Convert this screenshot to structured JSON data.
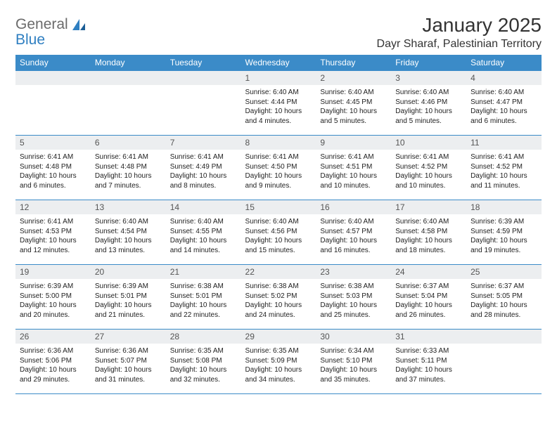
{
  "brand": {
    "name_part1": "General",
    "name_part2": "Blue",
    "logo_color": "#2f7fc1",
    "text_color": "#6b6b6b"
  },
  "header": {
    "month_title": "January 2025",
    "location": "Dayr Sharaf, Palestinian Territory"
  },
  "calendar": {
    "header_bg": "#3b8bc8",
    "header_fg": "#ffffff",
    "daynum_bg": "#eceef0",
    "border_color": "#3b8bc8",
    "columns": [
      "Sunday",
      "Monday",
      "Tuesday",
      "Wednesday",
      "Thursday",
      "Friday",
      "Saturday"
    ],
    "weeks": [
      [
        null,
        null,
        null,
        {
          "n": "1",
          "sunrise": "6:40 AM",
          "sunset": "4:44 PM",
          "daylight": "10 hours and 4 minutes."
        },
        {
          "n": "2",
          "sunrise": "6:40 AM",
          "sunset": "4:45 PM",
          "daylight": "10 hours and 5 minutes."
        },
        {
          "n": "3",
          "sunrise": "6:40 AM",
          "sunset": "4:46 PM",
          "daylight": "10 hours and 5 minutes."
        },
        {
          "n": "4",
          "sunrise": "6:40 AM",
          "sunset": "4:47 PM",
          "daylight": "10 hours and 6 minutes."
        }
      ],
      [
        {
          "n": "5",
          "sunrise": "6:41 AM",
          "sunset": "4:48 PM",
          "daylight": "10 hours and 6 minutes."
        },
        {
          "n": "6",
          "sunrise": "6:41 AM",
          "sunset": "4:48 PM",
          "daylight": "10 hours and 7 minutes."
        },
        {
          "n": "7",
          "sunrise": "6:41 AM",
          "sunset": "4:49 PM",
          "daylight": "10 hours and 8 minutes."
        },
        {
          "n": "8",
          "sunrise": "6:41 AM",
          "sunset": "4:50 PM",
          "daylight": "10 hours and 9 minutes."
        },
        {
          "n": "9",
          "sunrise": "6:41 AM",
          "sunset": "4:51 PM",
          "daylight": "10 hours and 10 minutes."
        },
        {
          "n": "10",
          "sunrise": "6:41 AM",
          "sunset": "4:52 PM",
          "daylight": "10 hours and 10 minutes."
        },
        {
          "n": "11",
          "sunrise": "6:41 AM",
          "sunset": "4:52 PM",
          "daylight": "10 hours and 11 minutes."
        }
      ],
      [
        {
          "n": "12",
          "sunrise": "6:41 AM",
          "sunset": "4:53 PM",
          "daylight": "10 hours and 12 minutes."
        },
        {
          "n": "13",
          "sunrise": "6:40 AM",
          "sunset": "4:54 PM",
          "daylight": "10 hours and 13 minutes."
        },
        {
          "n": "14",
          "sunrise": "6:40 AM",
          "sunset": "4:55 PM",
          "daylight": "10 hours and 14 minutes."
        },
        {
          "n": "15",
          "sunrise": "6:40 AM",
          "sunset": "4:56 PM",
          "daylight": "10 hours and 15 minutes."
        },
        {
          "n": "16",
          "sunrise": "6:40 AM",
          "sunset": "4:57 PM",
          "daylight": "10 hours and 16 minutes."
        },
        {
          "n": "17",
          "sunrise": "6:40 AM",
          "sunset": "4:58 PM",
          "daylight": "10 hours and 18 minutes."
        },
        {
          "n": "18",
          "sunrise": "6:39 AM",
          "sunset": "4:59 PM",
          "daylight": "10 hours and 19 minutes."
        }
      ],
      [
        {
          "n": "19",
          "sunrise": "6:39 AM",
          "sunset": "5:00 PM",
          "daylight": "10 hours and 20 minutes."
        },
        {
          "n": "20",
          "sunrise": "6:39 AM",
          "sunset": "5:01 PM",
          "daylight": "10 hours and 21 minutes."
        },
        {
          "n": "21",
          "sunrise": "6:38 AM",
          "sunset": "5:01 PM",
          "daylight": "10 hours and 22 minutes."
        },
        {
          "n": "22",
          "sunrise": "6:38 AM",
          "sunset": "5:02 PM",
          "daylight": "10 hours and 24 minutes."
        },
        {
          "n": "23",
          "sunrise": "6:38 AM",
          "sunset": "5:03 PM",
          "daylight": "10 hours and 25 minutes."
        },
        {
          "n": "24",
          "sunrise": "6:37 AM",
          "sunset": "5:04 PM",
          "daylight": "10 hours and 26 minutes."
        },
        {
          "n": "25",
          "sunrise": "6:37 AM",
          "sunset": "5:05 PM",
          "daylight": "10 hours and 28 minutes."
        }
      ],
      [
        {
          "n": "26",
          "sunrise": "6:36 AM",
          "sunset": "5:06 PM",
          "daylight": "10 hours and 29 minutes."
        },
        {
          "n": "27",
          "sunrise": "6:36 AM",
          "sunset": "5:07 PM",
          "daylight": "10 hours and 31 minutes."
        },
        {
          "n": "28",
          "sunrise": "6:35 AM",
          "sunset": "5:08 PM",
          "daylight": "10 hours and 32 minutes."
        },
        {
          "n": "29",
          "sunrise": "6:35 AM",
          "sunset": "5:09 PM",
          "daylight": "10 hours and 34 minutes."
        },
        {
          "n": "30",
          "sunrise": "6:34 AM",
          "sunset": "5:10 PM",
          "daylight": "10 hours and 35 minutes."
        },
        {
          "n": "31",
          "sunrise": "6:33 AM",
          "sunset": "5:11 PM",
          "daylight": "10 hours and 37 minutes."
        },
        null
      ]
    ],
    "labels": {
      "sunrise_prefix": "Sunrise: ",
      "sunset_prefix": "Sunset: ",
      "daylight_prefix": "Daylight: "
    }
  }
}
